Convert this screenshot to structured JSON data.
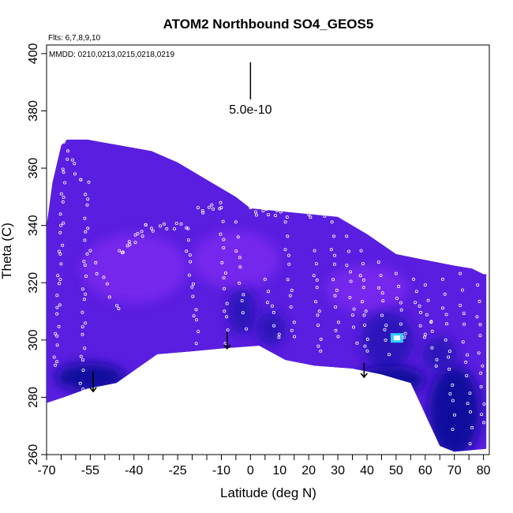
{
  "chart_data": {
    "type": "heatmap",
    "title": "ATOM2 Northbound SO4_GEOS5",
    "flights_note": "Flts: 6,7,8,9,10",
    "dates_note": "MMDD: 0210,0213,0215,0218,0219",
    "xlabel": "Latitude (deg N)",
    "ylabel": "Theta (C)",
    "xlim": [
      -70,
      82
    ],
    "ylim": [
      260,
      403
    ],
    "x_ticks": [
      -70,
      -55,
      -40,
      -25,
      -10,
      0,
      10,
      20,
      30,
      40,
      50,
      60,
      70,
      80
    ],
    "y_ticks": [
      260,
      280,
      300,
      320,
      340,
      360,
      380,
      400
    ],
    "scale_bar_label": "5.0e-10",
    "colors": {
      "base": "#5a1ee0",
      "light": "#7e2cf0",
      "dark": "#2a12b8",
      "deep": "#0b0a9a",
      "cyan": "#33ccff"
    },
    "field_outline": [
      [
        -70,
        278
      ],
      [
        -70,
        340
      ],
      [
        -68,
        355
      ],
      [
        -65,
        368
      ],
      [
        -63,
        370
      ],
      [
        -56,
        370
      ],
      [
        -45,
        368
      ],
      [
        -34,
        366
      ],
      [
        -25,
        362
      ],
      [
        -15,
        356
      ],
      [
        -5,
        350
      ],
      [
        0,
        346
      ],
      [
        10,
        345
      ],
      [
        20,
        344
      ],
      [
        30,
        343
      ],
      [
        40,
        337
      ],
      [
        50,
        330
      ],
      [
        60,
        328
      ],
      [
        70,
        326
      ],
      [
        76,
        325
      ],
      [
        80,
        323
      ],
      [
        81,
        323
      ],
      [
        81,
        262
      ],
      [
        70,
        261
      ],
      [
        65,
        263
      ],
      [
        55,
        285
      ],
      [
        45,
        288
      ],
      [
        35,
        290
      ],
      [
        22,
        291
      ],
      [
        12,
        293
      ],
      [
        3,
        298
      ],
      [
        -10,
        297
      ],
      [
        -20,
        296
      ],
      [
        -32,
        295
      ],
      [
        -46,
        285
      ],
      [
        -56,
        283
      ],
      [
        -64,
        280
      ]
    ],
    "dark_blobs": [
      {
        "x": -3,
        "y": 310,
        "rx": 5,
        "ry": 8,
        "shade": "dark"
      },
      {
        "x": 7,
        "y": 304,
        "rx": 5,
        "ry": 6,
        "shade": "dark"
      },
      {
        "x": 47,
        "y": 300,
        "rx": 9,
        "ry": 10,
        "shade": "dark"
      },
      {
        "x": 48,
        "y": 286,
        "rx": 12,
        "ry": 5,
        "shade": "deep"
      },
      {
        "x": -55,
        "y": 287,
        "rx": 12,
        "ry": 5,
        "shade": "deep"
      },
      {
        "x": 70,
        "y": 275,
        "rx": 9,
        "ry": 16,
        "shade": "deep"
      },
      {
        "x": 65,
        "y": 295,
        "rx": 6,
        "ry": 6,
        "shade": "dark"
      }
    ],
    "cyan_cell": {
      "x": 50,
      "y": 301
    },
    "light_blobs": [
      {
        "x": -40,
        "y": 325,
        "rx": 18,
        "ry": 12
      },
      {
        "x": -5,
        "y": 328,
        "rx": 15,
        "ry": 10
      },
      {
        "x": 40,
        "y": 318,
        "rx": 14,
        "ry": 8
      }
    ],
    "arrows": [
      {
        "x": -54,
        "y_top": 289,
        "y_bottom": 282
      },
      {
        "x": -8,
        "y_top": 303,
        "y_bottom": 297
      },
      {
        "x": 39,
        "y_top": 292,
        "y_bottom": 287
      }
    ],
    "scale_bar": {
      "x": 0,
      "y_top": 397,
      "y_bottom": 384
    },
    "flight_tracks": [
      {
        "from": [
          -64,
          368
        ],
        "to": [
          -58,
          355
        ],
        "n": 8
      },
      {
        "from": [
          -67,
          290
        ],
        "to": [
          -64,
          360
        ],
        "n": 28
      },
      {
        "from": [
          -58,
          280
        ],
        "to": [
          -56,
          355
        ],
        "n": 26
      },
      {
        "from": [
          -55,
          330
        ],
        "to": [
          -45,
          310
        ],
        "n": 8
      },
      {
        "from": [
          -45,
          330
        ],
        "to": [
          -36,
          339
        ],
        "n": 12
      },
      {
        "from": [
          -36,
          339
        ],
        "to": [
          -22,
          340
        ],
        "n": 10
      },
      {
        "from": [
          -22,
          338
        ],
        "to": [
          -18,
          300
        ],
        "n": 14
      },
      {
        "from": [
          -18,
          345
        ],
        "to": [
          -10,
          347
        ],
        "n": 8
      },
      {
        "from": [
          -10,
          345
        ],
        "to": [
          -8,
          300
        ],
        "n": 14
      },
      {
        "from": [
          -5,
          340
        ],
        "to": [
          -2,
          305
        ],
        "n": 10
      },
      {
        "from": [
          0,
          345
        ],
        "to": [
          12,
          344
        ],
        "n": 10
      },
      {
        "from": [
          5,
          320
        ],
        "to": [
          10,
          300
        ],
        "n": 8
      },
      {
        "from": [
          12,
          340
        ],
        "to": [
          15,
          300
        ],
        "n": 12
      },
      {
        "from": [
          18,
          344
        ],
        "to": [
          26,
          344
        ],
        "n": 6
      },
      {
        "from": [
          22,
          330
        ],
        "to": [
          24,
          295
        ],
        "n": 12
      },
      {
        "from": [
          28,
          340
        ],
        "to": [
          30,
          300
        ],
        "n": 12
      },
      {
        "from": [
          33,
          335
        ],
        "to": [
          36,
          300
        ],
        "n": 10
      },
      {
        "from": [
          38,
          330
        ],
        "to": [
          40,
          295
        ],
        "n": 12
      },
      {
        "from": [
          44,
          326
        ],
        "to": [
          47,
          296
        ],
        "n": 10
      },
      {
        "from": [
          50,
          322
        ],
        "to": [
          53,
          300
        ],
        "n": 8
      },
      {
        "from": [
          56,
          320
        ],
        "to": [
          60,
          300
        ],
        "n": 8
      },
      {
        "from": [
          60,
          318
        ],
        "to": [
          64,
          290
        ],
        "n": 8
      },
      {
        "from": [
          66,
          320
        ],
        "to": [
          70,
          270
        ],
        "n": 14
      },
      {
        "from": [
          72,
          322
        ],
        "to": [
          76,
          265
        ],
        "n": 14
      },
      {
        "from": [
          78,
          318
        ],
        "to": [
          80,
          270
        ],
        "n": 12
      },
      {
        "from": [
          62,
          305
        ],
        "to": [
          62,
          305
        ],
        "n": 1
      }
    ]
  }
}
